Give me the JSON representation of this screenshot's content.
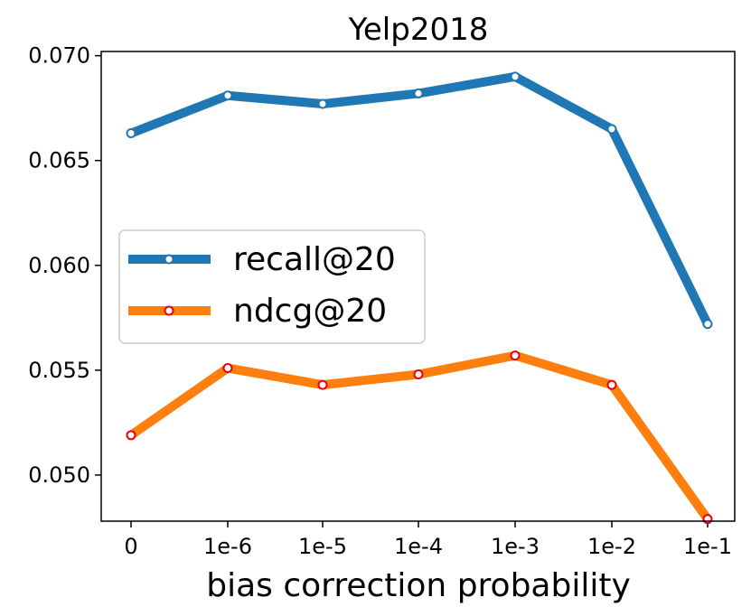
{
  "chart_data": {
    "type": "line",
    "title": "Yelp2018",
    "xlabel": "bias correction probability",
    "ylabel": "",
    "categories": [
      "0",
      "1e-6",
      "1e-5",
      "1e-4",
      "1e-3",
      "1e-2",
      "1e-1"
    ],
    "ylim": [
      0.0478,
      0.0702
    ],
    "yticks": [
      "0.050",
      "0.055",
      "0.060",
      "0.065",
      "0.070"
    ],
    "yticks_values": [
      0.05,
      0.055,
      0.06,
      0.065,
      0.07
    ],
    "grid": false,
    "legend_position": "center-left",
    "series": [
      {
        "name": "recall@20",
        "color": "#1f77b4",
        "marker_edge": "#1f77b4",
        "values": [
          0.0663,
          0.0681,
          0.0677,
          0.0682,
          0.069,
          0.0665,
          0.0572
        ]
      },
      {
        "name": "ndcg@20",
        "color": "#ff7f0e",
        "marker_edge": "#e8000b",
        "values": [
          0.0519,
          0.0551,
          0.0543,
          0.0548,
          0.0557,
          0.0543,
          0.0479
        ]
      }
    ]
  }
}
